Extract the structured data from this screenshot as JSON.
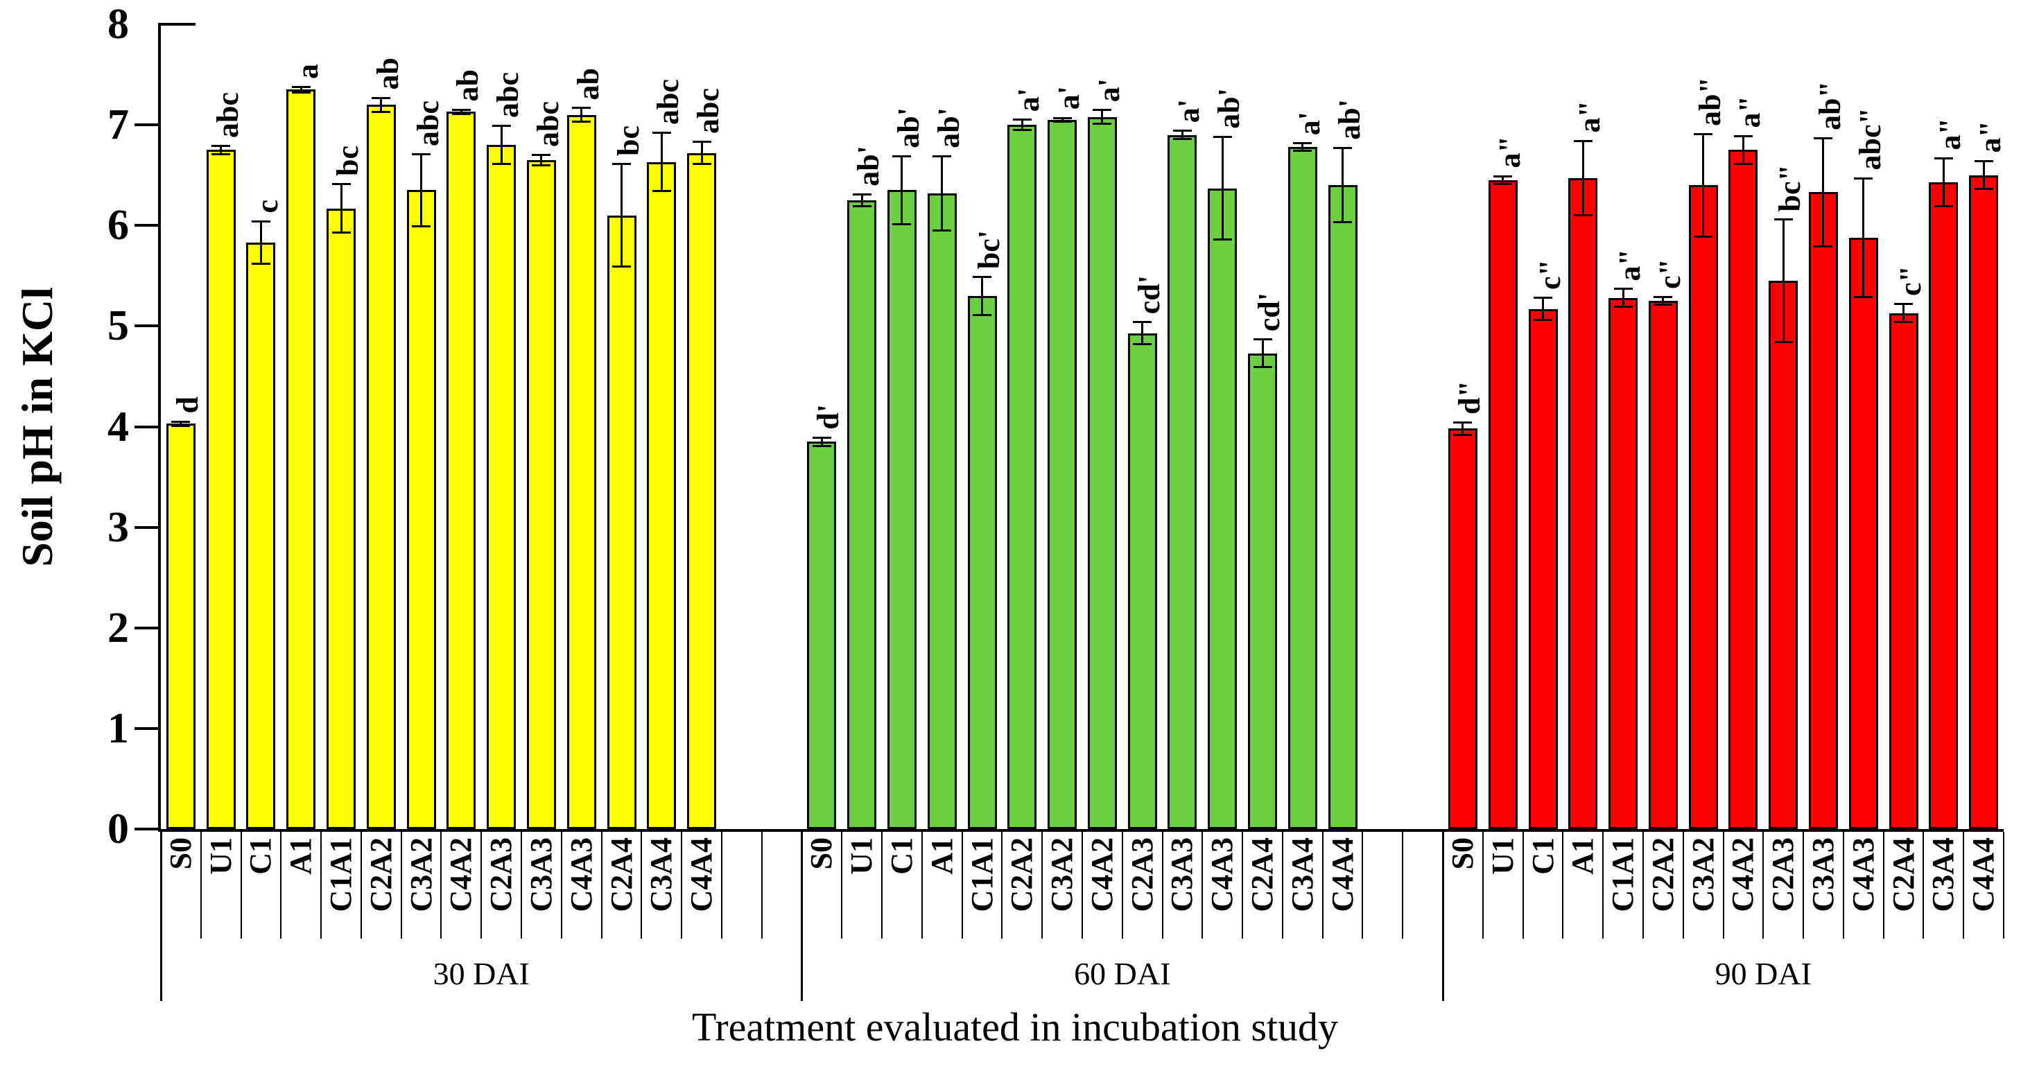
{
  "chart_data": {
    "type": "bar",
    "title": "",
    "xlabel": "Treatment evaluated in incubation study",
    "ylabel": "Soil pH in KCl",
    "ylim": [
      0,
      8
    ],
    "yticks": [
      0,
      1,
      2,
      3,
      4,
      5,
      6,
      7,
      8
    ],
    "grid": false,
    "legend_position": "none",
    "bar_outline_color": "#000000",
    "error_bar_color": "#000000",
    "categories": [
      "S0",
      "U1",
      "C1",
      "A1",
      "C1A1",
      "C2A2",
      "C3A2",
      "C4A2",
      "C2A3",
      "C3A3",
      "C4A3",
      "C2A4",
      "C3A4",
      "C4A4"
    ],
    "group_labels": [
      "30 DAI",
      "60 DAI",
      "90 DAI"
    ],
    "layout": {
      "group_gap_slots": 2,
      "slots_per_group": 14
    },
    "series": [
      {
        "name": "30 DAI",
        "color": "#FFFF00",
        "values": [
          4.03,
          6.75,
          5.83,
          7.35,
          6.17,
          7.2,
          6.35,
          7.13,
          6.8,
          6.65,
          7.1,
          6.1,
          6.63,
          6.72
        ],
        "errors": [
          0.03,
          0.05,
          0.22,
          0.04,
          0.25,
          0.08,
          0.37,
          0.03,
          0.2,
          0.06,
          0.08,
          0.52,
          0.3,
          0.12
        ],
        "letters": [
          "d",
          "abc",
          "c",
          "a",
          "bc",
          "ab",
          "abc",
          "ab",
          "abc",
          "abc",
          "ab",
          "bc",
          "abc",
          "abc"
        ]
      },
      {
        "name": "60 DAI",
        "color": "#6CCE41",
        "values": [
          3.85,
          6.25,
          6.35,
          6.32,
          5.3,
          7.0,
          7.05,
          7.08,
          4.93,
          6.9,
          6.37,
          4.73,
          6.78,
          6.4
        ],
        "errors": [
          0.05,
          0.07,
          0.35,
          0.38,
          0.2,
          0.06,
          0.03,
          0.08,
          0.12,
          0.05,
          0.52,
          0.15,
          0.05,
          0.38
        ],
        "letters": [
          "d'",
          "ab'",
          "ab'",
          "ab'",
          "bc'",
          "a'",
          "a'",
          "a'",
          "cd'",
          "a'",
          "ab'",
          "cd'",
          "a'",
          "ab'"
        ]
      },
      {
        "name": "90 DAI",
        "color": "#FF0000",
        "values": [
          3.98,
          6.45,
          5.17,
          6.47,
          5.28,
          5.25,
          6.4,
          6.75,
          5.45,
          6.33,
          5.88,
          5.13,
          6.43,
          6.5
        ],
        "errors": [
          0.07,
          0.05,
          0.12,
          0.38,
          0.1,
          0.05,
          0.52,
          0.15,
          0.62,
          0.55,
          0.6,
          0.1,
          0.25,
          0.15
        ],
        "letters": [
          "d\"",
          "a\"",
          "c\"",
          "a\"",
          "a\"",
          "c\"",
          "ab\"",
          "a\"",
          "bc\"",
          "ab\"",
          "abc\"",
          "c\"",
          "a\"",
          "a\""
        ]
      }
    ]
  }
}
